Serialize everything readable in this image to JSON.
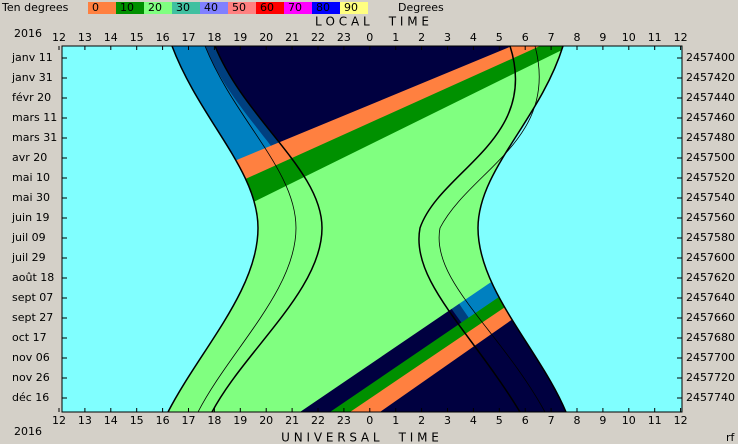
{
  "legend": {
    "title": "Ten degrees",
    "labels": [
      "0",
      "10",
      "20",
      "30",
      "40",
      "50",
      "60",
      "70",
      "80",
      "90"
    ],
    "unit": "Degrees"
  },
  "top_axis": {
    "title": "L O C A L     T I M E",
    "labels": [
      "12",
      "13",
      "14",
      "15",
      "16",
      "17",
      "18",
      "19",
      "20",
      "21",
      "22",
      "23",
      "0",
      "1",
      "2",
      "3",
      "4",
      "5",
      "6",
      "7",
      "8",
      "9",
      "10",
      "11",
      "12"
    ]
  },
  "bottom_axis": {
    "title": "U N I V E R S A L     T I M E",
    "labels": [
      "12",
      "13",
      "14",
      "15",
      "16",
      "17",
      "18",
      "19",
      "20",
      "21",
      "22",
      "23",
      "0",
      "1",
      "2",
      "3",
      "4",
      "5",
      "6",
      "7",
      "8",
      "9",
      "10",
      "11",
      "12"
    ]
  },
  "year_top": "2016",
  "year_bottom": "2016",
  "left_labels": [
    "janv 11",
    "janv 31",
    "févr 20",
    "mars 11",
    "mars 31",
    "avr 20",
    "mai 10",
    "mai 30",
    "juin 19",
    "juil 09",
    "juil 29",
    "août 18",
    "sept 07",
    "sept 27",
    "oct 17",
    "nov 06",
    "nov 26",
    "déc 16"
  ],
  "right_labels": [
    "2457400",
    "2457420",
    "2457440",
    "2457460",
    "2457480",
    "2457500",
    "2457520",
    "2457540",
    "2457560",
    "2457580",
    "2457600",
    "2457620",
    "2457640",
    "2457660",
    "2457680",
    "2457700",
    "2457720",
    "2457740"
  ],
  "corner": "rf"
}
